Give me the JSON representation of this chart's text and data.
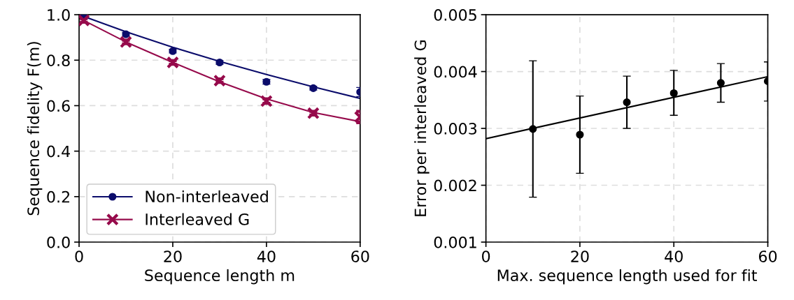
{
  "chart_data": [
    {
      "type": "scatter",
      "xlabel": "Sequence length m",
      "ylabel": "Sequence fidelity F(m)",
      "xlim": [
        0,
        60
      ],
      "ylim": [
        0,
        1.0
      ],
      "xticks": [
        0,
        20,
        40,
        60
      ],
      "yticks": [
        {
          "value": 0,
          "label": "0.0"
        },
        0.2,
        0.4,
        0.6,
        0.8,
        {
          "value": 1,
          "label": "1.0"
        }
      ],
      "grid": true,
      "legend": "bottom left",
      "series": [
        {
          "name": "Non-interleaved",
          "marker": "circle",
          "color": "#0b0c6b",
          "x": [
            1,
            10,
            20,
            30,
            40,
            50,
            60
          ],
          "values": [
            0.99,
            0.914,
            0.84,
            0.79,
            0.705,
            0.677,
            0.66
          ],
          "errors": [
            0.008,
            0.008,
            0.008,
            0.008,
            0.01,
            0.008,
            0.02
          ]
        },
        {
          "type": "line",
          "color": "#0b0c6b",
          "x": [
            0,
            10,
            20,
            30,
            40,
            50,
            60
          ],
          "values": [
            1.0,
            0.925,
            0.857,
            0.795,
            0.737,
            0.683,
            0.632
          ]
        },
        {
          "name": "Interleaved G",
          "marker": "cross",
          "color": "#960a4b",
          "x": [
            1,
            10,
            20,
            30,
            40,
            50,
            60
          ],
          "values": [
            0.975,
            0.88,
            0.79,
            0.71,
            0.62,
            0.567,
            0.55
          ],
          "errors": [
            0.008,
            0.008,
            0.008,
            0.008,
            0.01,
            0.008,
            0.025
          ]
        },
        {
          "type": "line",
          "color": "#960a4b",
          "x": [
            0,
            10,
            20,
            30,
            40,
            50,
            60
          ],
          "values": [
            0.985,
            0.88,
            0.79,
            0.705,
            0.63,
            0.57,
            0.53
          ]
        }
      ]
    },
    {
      "type": "scatter",
      "xlabel": "Max. sequence length used for fit",
      "ylabel": "Error per interleaved G",
      "xlim": [
        0,
        60
      ],
      "ylim": [
        0.001,
        0.005
      ],
      "xticks": [
        0,
        20,
        40,
        60
      ],
      "yticks": [
        0.001,
        0.002,
        0.003,
        0.004,
        0.005
      ],
      "grid": true,
      "series": [
        {
          "marker": "circle",
          "color": "#000000",
          "x": [
            10,
            20,
            30,
            40,
            50,
            60
          ],
          "values": [
            0.00299,
            0.00289,
            0.00346,
            0.00362,
            0.0038,
            0.00383
          ],
          "errors": [
            [
              0.00179,
              0.00419
            ],
            [
              0.00221,
              0.00357
            ],
            [
              0.003,
              0.00392
            ],
            [
              0.00323,
              0.00402
            ],
            [
              0.00346,
              0.00414
            ],
            [
              0.00348,
              0.00417
            ]
          ]
        },
        {
          "type": "line",
          "color": "#000000",
          "x": [
            0,
            60
          ],
          "values": [
            0.00282,
            0.00391
          ]
        }
      ]
    }
  ]
}
